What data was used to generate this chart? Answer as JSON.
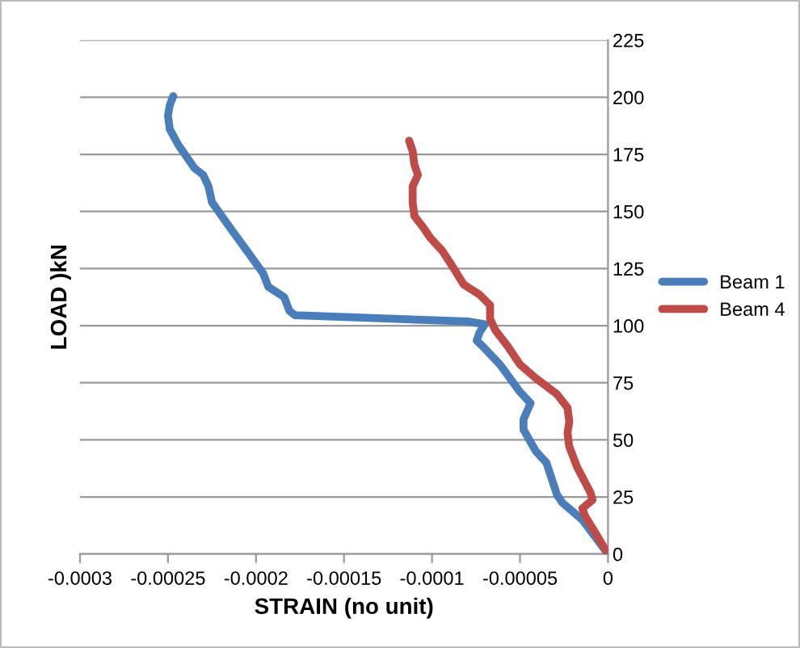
{
  "chart_data": {
    "type": "line",
    "xlabel": "STRAIN (no unit)",
    "ylabel": "LOAD )kN",
    "xlim": [
      -0.0003,
      0
    ],
    "xticks": [
      {
        "value": -0.0003,
        "label": "-0.0003"
      },
      {
        "value": -0.00025,
        "label": "-0.00025"
      },
      {
        "value": -0.0002,
        "label": "-0.0002"
      },
      {
        "value": -0.00015,
        "label": "-0.00015"
      },
      {
        "value": -0.0001,
        "label": "-0.0001"
      },
      {
        "value": -5e-05,
        "label": "-0.00005"
      },
      0
    ],
    "ylim": [
      0,
      225
    ],
    "yticks": [
      0,
      25,
      50,
      75,
      100,
      125,
      150,
      175,
      200,
      225
    ],
    "grid": "y",
    "legend": "right",
    "marker": "none",
    "line_style": "solid",
    "series": [
      {
        "name": "Beam 1",
        "color": "#4a7ebb",
        "x": [
          0,
          -1.46e-05,
          -2.6e-05,
          -2.9e-05,
          -3.5e-05,
          -4.1e-05,
          -4.8e-05,
          -4.8e-05,
          -4.4e-05,
          -5e-05,
          -6.14e-05,
          -7e-05,
          -7.46e-05,
          -7.3e-05,
          -7e-05,
          -7.9e-05,
          -0.000178,
          -0.000181,
          -0.000184,
          -0.000189,
          -0.000193,
          -0.000196,
          -0.000205,
          -0.000213,
          -0.000225,
          -0.000227,
          -0.00023,
          -0.000235,
          -0.000244,
          -0.000249,
          -0.00025,
          -0.000249,
          -0.000247
        ],
        "values": [
          0,
          15,
          22.5,
          26,
          40,
          45,
          54.5,
          59,
          66,
          71,
          83,
          90,
          93.5,
          97,
          100.6,
          101.8,
          104.6,
          106.5,
          112.5,
          115,
          117,
          123,
          132.6,
          141,
          154,
          161,
          166,
          169,
          179,
          186,
          192,
          196.5,
          200.5
        ]
      },
      {
        "name": "Beam 4",
        "color": "#be4b48",
        "x": [
          0,
          -7.3e-06,
          -1.3e-05,
          -1.46e-05,
          -8.8e-06,
          -1e-05,
          -1.75e-05,
          -2.2e-05,
          -2.3e-05,
          -2.2e-05,
          -2.3e-05,
          -2.9e-05,
          -4.1e-05,
          -5e-05,
          -5.7e-05,
          -6.4e-05,
          -6.7e-05,
          -6.7e-05,
          -7.3e-05,
          -8.2e-05,
          -8.6e-05,
          -8.9e-05,
          -9.4e-05,
          -0.000101,
          -0.000105,
          -0.00011,
          -0.000111,
          -0.000111,
          -0.000108,
          -0.00011,
          -0.000111,
          -0.000113
        ],
        "values": [
          0,
          9.5,
          16.6,
          20,
          23.7,
          27,
          38,
          47,
          53,
          58,
          64,
          70,
          77,
          83,
          91,
          98,
          103,
          109,
          113.6,
          118,
          123,
          126.7,
          132.6,
          138.5,
          143,
          148,
          154,
          161,
          166,
          170.5,
          176.4,
          181
        ]
      }
    ]
  }
}
